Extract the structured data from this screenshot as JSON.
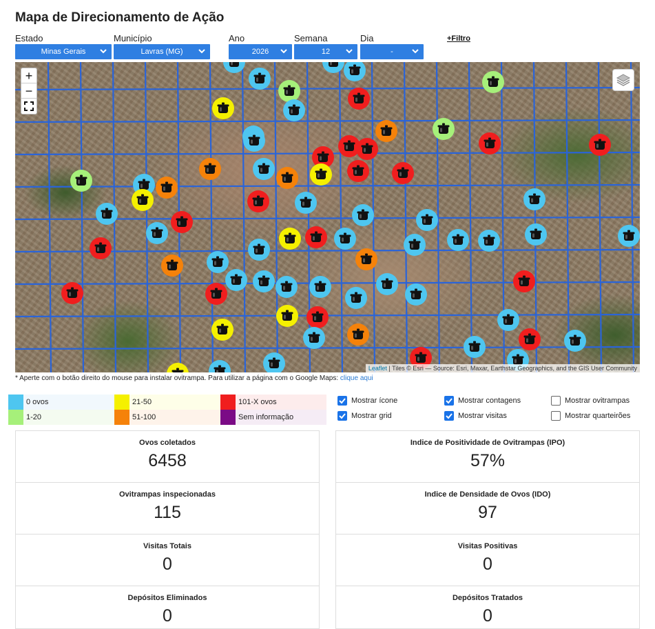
{
  "page": {
    "title": "Mapa de Direcionamento de Ação"
  },
  "filters": {
    "estado": {
      "label": "Estado",
      "value": "Minas Gerais"
    },
    "municipio": {
      "label": "Município",
      "value": "Lavras (MG)"
    },
    "ano": {
      "label": "Ano",
      "value": "2026"
    },
    "semana": {
      "label": "Semana",
      "value": "12"
    },
    "dia": {
      "label": "Dia",
      "value": "-"
    },
    "more_filter": "+Filtro"
  },
  "map": {
    "zoom_in": "+",
    "zoom_out": "−",
    "fullscreen_icon": "fullscreen-icon",
    "layers_icon": "layers-icon",
    "attribution": {
      "leaflet": "Leaflet",
      "rest": "| Tiles © Esri — Source: Esri, Maxar, Earthstar Geographics, and the GIS User Community"
    }
  },
  "note": {
    "text": "* Aperte com o botão direito do mouse para instalar ovitrampa. Para utilizar a página com o Google Maps: ",
    "link": "clique aqui"
  },
  "legend": [
    {
      "label": "0 ovos",
      "color": "#4ec6f0"
    },
    {
      "label": "1-20",
      "color": "#a6f07a"
    },
    {
      "label": "21-50",
      "color": "#f5f000"
    },
    {
      "label": "51-100",
      "color": "#f5820a"
    },
    {
      "label": "101-X ovos",
      "color": "#f01e1e"
    },
    {
      "label": "Sem informação",
      "color": "#7b0b86"
    }
  ],
  "options": [
    {
      "label": "Mostrar ícone",
      "checked": true
    },
    {
      "label": "Mostrar contagens",
      "checked": true
    },
    {
      "label": "Mostrar ovitrampas",
      "checked": false
    },
    {
      "label": "Mostrar grid",
      "checked": true
    },
    {
      "label": "Mostrar visitas",
      "checked": true
    },
    {
      "label": "Mostrar quarteirões",
      "checked": false
    }
  ],
  "stats": [
    {
      "title": "Ovos coletados",
      "value": "6458"
    },
    {
      "title": "Indice de Positividade de Ovitrampas (IPO)",
      "value": "57%"
    },
    {
      "title": "Ovitrampas inspecionadas",
      "value": "115"
    },
    {
      "title": "Indice de Densidade de Ovos (IDO)",
      "value": "97"
    },
    {
      "title": "Visitas Totais",
      "value": "0"
    },
    {
      "title": "Visitas Positivas",
      "value": "0"
    },
    {
      "title": "Depósitos Eliminados",
      "value": "0"
    },
    {
      "title": "Depósitos Tratados",
      "value": "0"
    }
  ],
  "colors": {
    "accent": "#2f7fe2",
    "grid_line": "#2a64d9",
    "checkbox": "#1a73e8"
  }
}
